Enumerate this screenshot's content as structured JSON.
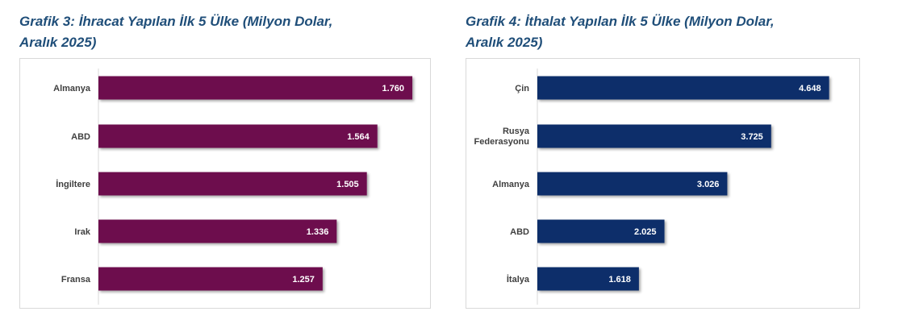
{
  "charts": [
    {
      "title_line1": "Grafik 3: İhracat Yapılan İlk 5 Ülke (Milyon Dolar,",
      "title_line2": "Aralık 2025)",
      "chart_data": {
        "type": "bar",
        "orientation": "horizontal",
        "categories": [
          "Almanya",
          "ABD",
          "İngiltere",
          "Irak",
          "Fransa"
        ],
        "values": [
          1760,
          1564,
          1505,
          1336,
          1257
        ],
        "value_labels": [
          "1.760",
          "1.564",
          "1.505",
          "1.336",
          "1.257"
        ],
        "xlim": [
          0,
          1900
        ],
        "color": "#6d0f4e",
        "grid": false
      }
    },
    {
      "title_line1": "Grafik 4: İthalat Yapılan İlk 5 Ülke (Milyon Dolar,",
      "title_line2": "Aralık 2025)",
      "chart_data": {
        "type": "bar",
        "orientation": "horizontal",
        "categories": [
          "Çin",
          "Rusya Federasyonu",
          "Almanya",
          "ABD",
          "İtalya"
        ],
        "values": [
          4648,
          3725,
          3026,
          2025,
          1618
        ],
        "value_labels": [
          "4.648",
          "3.725",
          "3.026",
          "2.025",
          "1.618"
        ],
        "xlim": [
          0,
          5000
        ],
        "color": "#0f2d6b",
        "grid": false
      }
    }
  ]
}
